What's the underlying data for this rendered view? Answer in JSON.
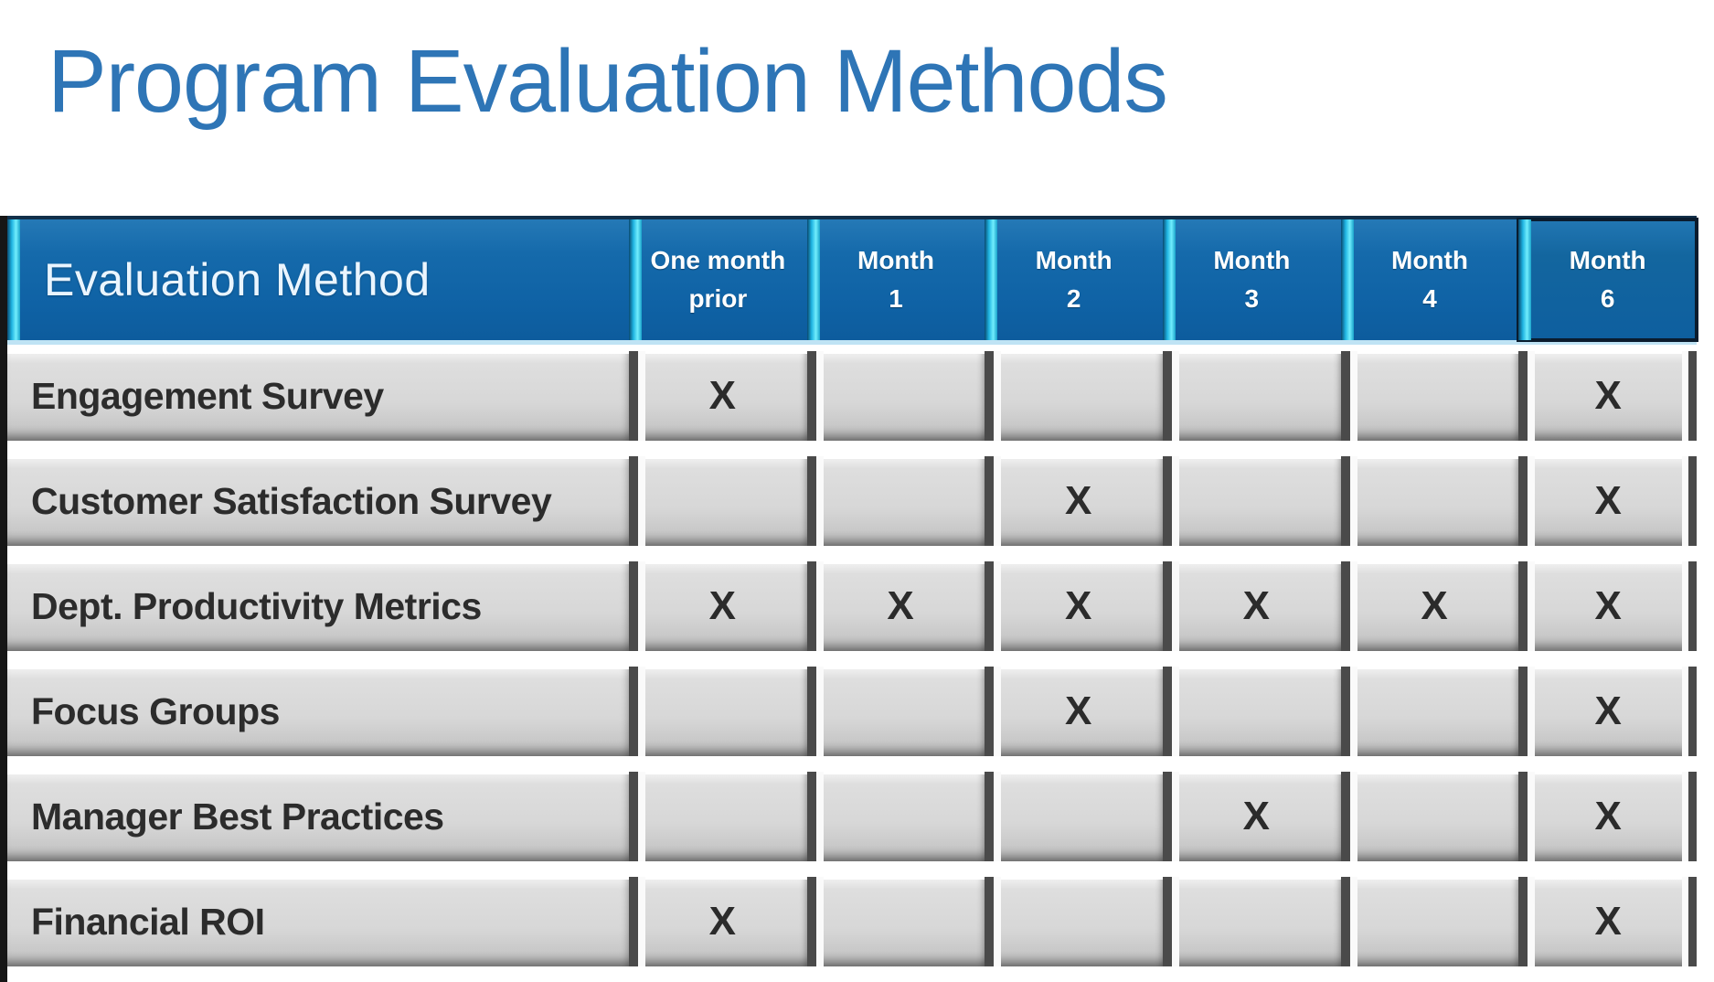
{
  "title": "Program Evaluation Methods",
  "table": {
    "method_header": "Evaluation Method",
    "mark_symbol": "X",
    "columns": [
      {
        "id": "one-month-prior",
        "line1": "One month",
        "line2": "prior",
        "emphasis": false
      },
      {
        "id": "month-1",
        "line1": "Month",
        "line2": "1",
        "emphasis": false
      },
      {
        "id": "month-2",
        "line1": "Month",
        "line2": "2",
        "emphasis": false
      },
      {
        "id": "month-3",
        "line1": "Month",
        "line2": "3",
        "emphasis": false
      },
      {
        "id": "month-4",
        "line1": "Month",
        "line2": "4",
        "emphasis": false
      },
      {
        "id": "month-6",
        "line1": "Month",
        "line2": "6",
        "emphasis": true
      }
    ],
    "rows": [
      {
        "label": "Engagement Survey",
        "marks": [
          "X",
          "",
          "",
          "",
          "",
          "X"
        ]
      },
      {
        "label": "Customer Satisfaction Survey",
        "marks": [
          "",
          "",
          "X",
          "",
          "",
          "X"
        ]
      },
      {
        "label": "Dept. Productivity Metrics",
        "marks": [
          "X",
          "X",
          "X",
          "X",
          "X",
          "X"
        ]
      },
      {
        "label": "Focus Groups",
        "marks": [
          "",
          "",
          "X",
          "",
          "",
          "X"
        ]
      },
      {
        "label": "Manager Best Practices",
        "marks": [
          "",
          "",
          "",
          "X",
          "",
          "X"
        ]
      },
      {
        "label": "Financial ROI",
        "marks": [
          "X",
          "",
          "",
          "",
          "",
          "X"
        ]
      }
    ]
  },
  "colors": {
    "title_text": "#2E75B6",
    "header_fill": "#0F62A5",
    "header_accent_cyan": "#35CCF0",
    "header_text": "#FFFFFF",
    "row_fill": "#D8D8D8",
    "row_gap": "#FFFFFF",
    "groove_dark": "#4A4A4A",
    "left_edge": "#161616",
    "mark_text": "#2B2B2B"
  }
}
